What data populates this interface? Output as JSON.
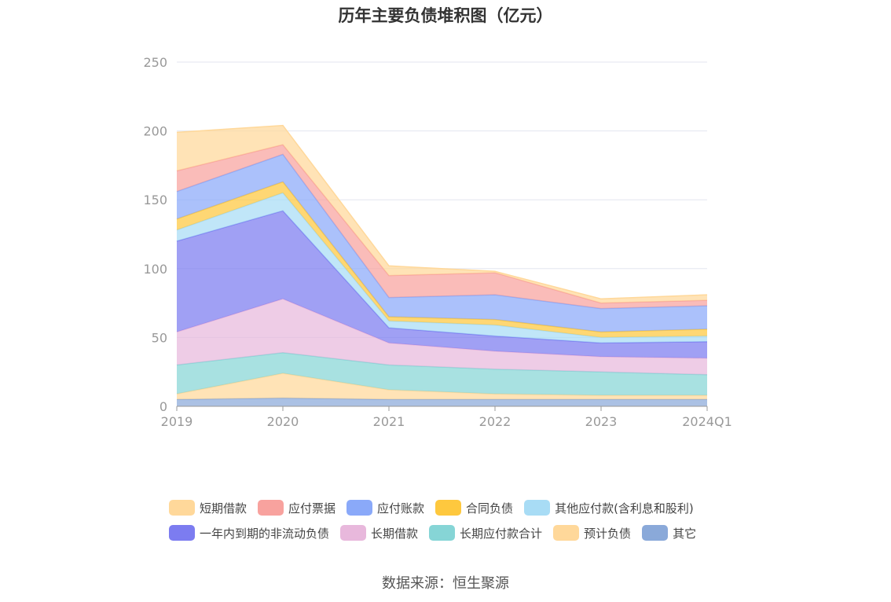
{
  "title": "历年主要负债堆积图（亿元）",
  "source": "数据来源：恒生聚源",
  "colors": {
    "grid": "#e3e6ef",
    "axis": "#999999",
    "tick_text": "#999999"
  },
  "chart_data": {
    "type": "area",
    "stacked": true,
    "title": "历年主要负债堆积图（亿元）",
    "categories": [
      "2019",
      "2020",
      "2021",
      "2022",
      "2023",
      "2024Q1"
    ],
    "y_ticks": [
      0,
      50,
      100,
      150,
      200,
      250
    ],
    "ylim": [
      0,
      250
    ],
    "grid": true,
    "legend_position": "bottom",
    "series": [
      {
        "name": "其它",
        "color": "#8aa9d9",
        "values": [
          5,
          6,
          5,
          5,
          5,
          5
        ]
      },
      {
        "name": "预计负债",
        "color": "#ffd89a",
        "values": [
          4,
          18,
          7,
          4,
          3,
          3
        ]
      },
      {
        "name": "长期应付款合计",
        "color": "#86d5d6",
        "values": [
          21,
          15,
          18,
          18,
          17,
          15
        ]
      },
      {
        "name": "长期借款",
        "color": "#e8b8dc",
        "values": [
          24,
          39,
          16,
          13,
          11,
          12
        ]
      },
      {
        "name": "一年内到期的非流动负债",
        "color": "#7c7cf0",
        "values": [
          66,
          64,
          11,
          11,
          10,
          12
        ]
      },
      {
        "name": "其他应付款(含利息和股利)",
        "color": "#a8dcf5",
        "values": [
          8,
          13,
          5,
          8,
          4,
          4
        ]
      },
      {
        "name": "合同负债",
        "color": "#fec83e",
        "values": [
          8,
          8,
          3,
          4,
          4,
          5
        ]
      },
      {
        "name": "应付账款",
        "color": "#8aa9f9",
        "values": [
          20,
          20,
          14,
          18,
          17,
          17
        ]
      },
      {
        "name": "应付票据",
        "color": "#f8a29e",
        "values": [
          15,
          7,
          16,
          16,
          4,
          4
        ]
      },
      {
        "name": "短期借款",
        "color": "#ffd89a",
        "values": [
          28,
          14,
          7,
          1,
          3,
          4
        ]
      }
    ]
  },
  "legend": [
    [
      {
        "label": "短期借款",
        "color": "#ffd89a"
      },
      {
        "label": "应付票据",
        "color": "#f8a29e"
      },
      {
        "label": "应付账款",
        "color": "#8aa9f9"
      },
      {
        "label": "合同负债",
        "color": "#fec83e"
      },
      {
        "label": "其他应付款(含利息和股利)",
        "color": "#a8dcf5"
      }
    ],
    [
      {
        "label": "一年内到期的非流动负债",
        "color": "#7c7cf0"
      },
      {
        "label": "长期借款",
        "color": "#e8b8dc"
      },
      {
        "label": "长期应付款合计",
        "color": "#86d5d6"
      },
      {
        "label": "预计负债",
        "color": "#ffd89a"
      },
      {
        "label": "其它",
        "color": "#8aa9d9"
      }
    ]
  ]
}
